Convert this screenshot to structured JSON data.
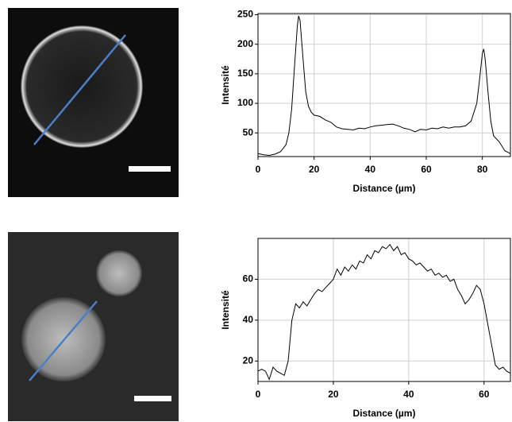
{
  "chart_data": [
    {
      "type": "line",
      "x_label": "Distance (µm)",
      "y_label": "Intensité",
      "color": "#000000",
      "grid": true,
      "xlim": [
        0,
        90
      ],
      "ylim": [
        10,
        252
      ],
      "xticks": [
        0,
        20,
        40,
        60,
        80
      ],
      "yticks": [
        50,
        100,
        150,
        200,
        250
      ],
      "x": [
        0,
        2,
        4,
        6,
        8,
        10,
        11,
        12,
        13,
        14,
        14.5,
        15,
        16,
        17,
        18,
        19,
        20,
        22,
        24,
        26,
        28,
        30,
        32,
        34,
        36,
        38,
        40,
        42,
        44,
        46,
        48,
        50,
        52,
        54,
        56,
        58,
        60,
        62,
        64,
        66,
        68,
        70,
        72,
        74,
        76,
        78,
        79,
        80,
        80.5,
        81,
        82,
        83,
        84,
        86,
        88,
        90
      ],
      "values": [
        15,
        13,
        12,
        14,
        18,
        30,
        50,
        90,
        160,
        230,
        248,
        240,
        180,
        120,
        95,
        85,
        80,
        78,
        72,
        68,
        60,
        57,
        56,
        55,
        58,
        57,
        60,
        62,
        63,
        64,
        65,
        62,
        58,
        56,
        52,
        56,
        55,
        58,
        57,
        60,
        58,
        60,
        60,
        62,
        70,
        100,
        140,
        185,
        192,
        175,
        120,
        70,
        45,
        35,
        20,
        15
      ]
    },
    {
      "type": "line",
      "x_label": "Distance (µm)",
      "y_label": "Intensité",
      "color": "#000000",
      "grid": true,
      "xlim": [
        0,
        67
      ],
      "ylim": [
        10,
        80
      ],
      "xticks": [
        0,
        20,
        40,
        60
      ],
      "yticks": [
        20,
        40,
        60
      ],
      "x": [
        0,
        1,
        2,
        3,
        4,
        5,
        6,
        7,
        8,
        9,
        10,
        11,
        12,
        13,
        14,
        15,
        16,
        17,
        18,
        19,
        20,
        21,
        22,
        23,
        24,
        25,
        26,
        27,
        28,
        29,
        30,
        31,
        32,
        33,
        34,
        35,
        36,
        37,
        38,
        39,
        40,
        41,
        42,
        43,
        44,
        45,
        46,
        47,
        48,
        49,
        50,
        51,
        52,
        53,
        54,
        55,
        56,
        57,
        58,
        59,
        60,
        61,
        62,
        63,
        64,
        65,
        66,
        67
      ],
      "values": [
        15,
        16,
        15,
        11,
        17,
        15,
        14,
        13,
        20,
        40,
        48,
        46,
        49,
        47,
        50,
        53,
        55,
        54,
        56,
        58,
        60,
        65,
        62,
        66,
        64,
        67,
        65,
        69,
        68,
        72,
        70,
        74,
        73,
        76,
        75,
        77,
        74,
        76,
        72,
        73,
        70,
        69,
        67,
        68,
        66,
        64,
        65,
        62,
        63,
        61,
        62,
        59,
        60,
        55,
        52,
        48,
        50,
        53,
        57,
        55,
        48,
        38,
        28,
        18,
        16,
        17,
        15,
        14
      ]
    }
  ]
}
